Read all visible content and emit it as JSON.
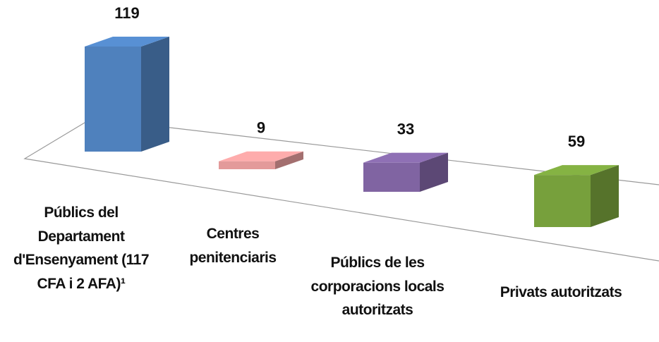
{
  "chart_data": {
    "type": "bar3d",
    "categories": [
      "Públics del Departament d'Ensenyament (117 CFA i 2 AFA)¹",
      "Centres penitenciaris",
      "Públics de les corporacions locals autoritzats",
      "Privats autoritzats"
    ],
    "values": [
      119,
      9,
      33,
      59
    ],
    "colors": [
      "#4f81bd",
      "#e39a9a",
      "#8064a2",
      "#77a03c"
    ]
  }
}
